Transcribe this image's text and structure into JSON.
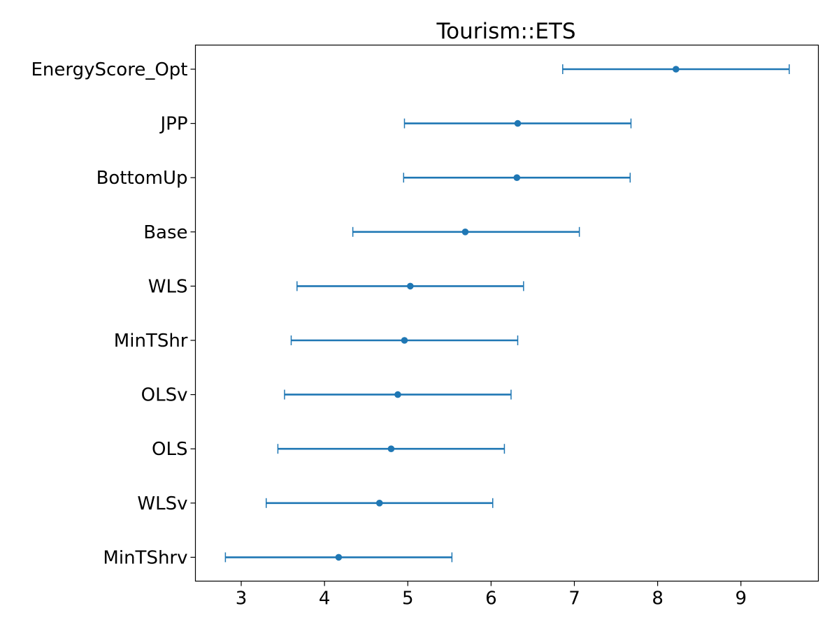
{
  "chart_data": {
    "type": "errorbar",
    "title": "Tourism::ETS",
    "xlabel": "",
    "ylabel": "",
    "xlim": [
      2.45,
      9.93
    ],
    "x_ticks": [
      3,
      4,
      5,
      6,
      7,
      8,
      9
    ],
    "grid": false,
    "color": "#1f77b4",
    "categories": [
      "EnergyScore_Opt",
      "JPP",
      "BottomUp",
      "Base",
      "WLS",
      "MinTShr",
      "OLSv",
      "OLS",
      "WLSv",
      "MinTShrv"
    ],
    "series": [
      {
        "points": [
          {
            "label": "EnergyScore_Opt",
            "mean": 8.22,
            "low": 6.86,
            "high": 9.58
          },
          {
            "label": "JPP",
            "mean": 6.32,
            "low": 4.96,
            "high": 7.68
          },
          {
            "label": "BottomUp",
            "mean": 6.31,
            "low": 4.95,
            "high": 7.67
          },
          {
            "label": "Base",
            "mean": 5.69,
            "low": 4.34,
            "high": 7.06
          },
          {
            "label": "WLS",
            "mean": 5.03,
            "low": 3.67,
            "high": 6.39
          },
          {
            "label": "MinTShr",
            "mean": 4.96,
            "low": 3.6,
            "high": 6.32
          },
          {
            "label": "OLSv",
            "mean": 4.88,
            "low": 3.52,
            "high": 6.24
          },
          {
            "label": "OLS",
            "mean": 4.8,
            "low": 3.44,
            "high": 6.16
          },
          {
            "label": "WLSv",
            "mean": 4.66,
            "low": 3.3,
            "high": 6.02
          },
          {
            "label": "MinTShrv",
            "mean": 4.17,
            "low": 2.81,
            "high": 5.53
          }
        ]
      }
    ]
  }
}
